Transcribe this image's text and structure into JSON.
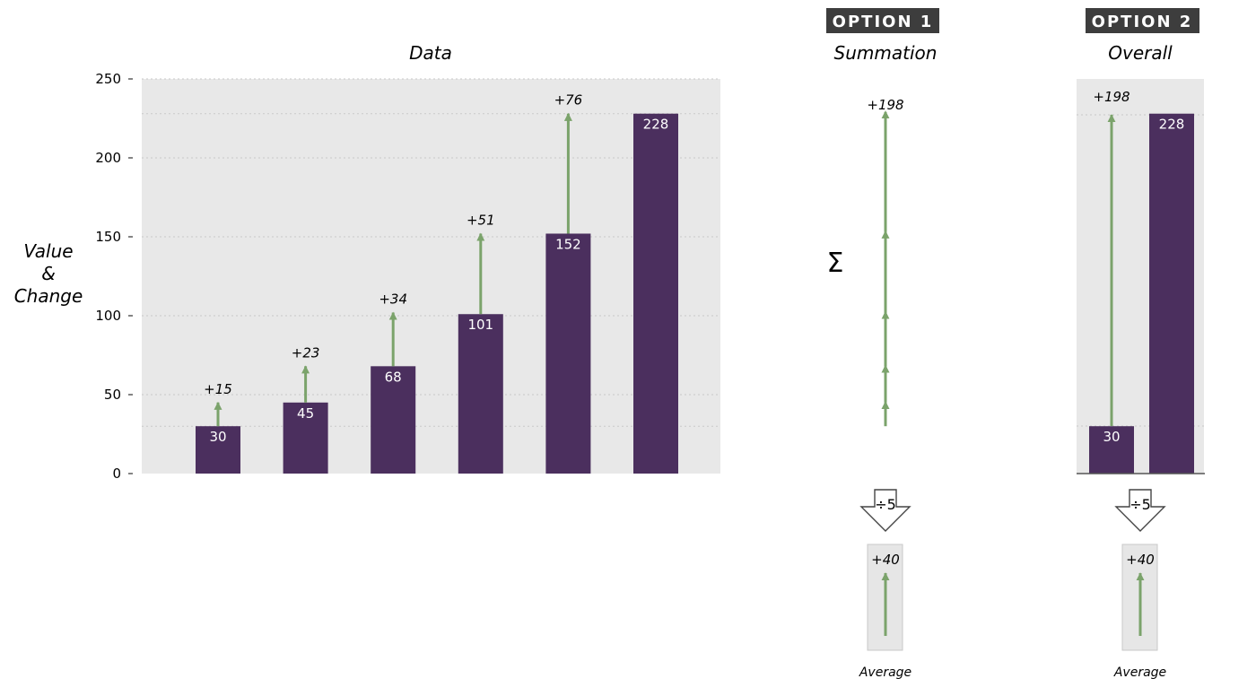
{
  "colors": {
    "bar": "#4b2f5e",
    "arrow": "#7ba36b",
    "panel": "#e8e8e8",
    "grid": "#c9c9c9",
    "badge": "#3d3d3d",
    "badge_text": "#ffffff"
  },
  "chart_data": [
    {
      "type": "bar",
      "title": "Data",
      "ylabel": [
        "Value",
        "&",
        "Change"
      ],
      "ylim": [
        0,
        250
      ],
      "yticks": [
        0,
        50,
        100,
        150,
        200,
        250
      ],
      "grid": true,
      "values": [
        30,
        45,
        68,
        101,
        152,
        228
      ],
      "value_labels": [
        "30",
        "45",
        "68",
        "101",
        "152",
        "228"
      ],
      "changes": [
        15,
        23,
        34,
        51,
        76
      ],
      "change_labels": [
        "+15",
        "+23",
        "+34",
        "+51",
        "+76"
      ]
    },
    {
      "type": "line",
      "badge": "OPTION 1",
      "title": "Summation",
      "symbol": "Σ",
      "segments": [
        15,
        23,
        34,
        51,
        76
      ],
      "from": 30,
      "to": 228,
      "total_label": "+198",
      "divide_label": "÷5",
      "average": 40,
      "average_label": "+40",
      "average_caption": "Average"
    },
    {
      "type": "bar",
      "badge": "OPTION 2",
      "title": "Overall",
      "values": [
        30,
        228
      ],
      "value_labels": [
        "30",
        "228"
      ],
      "total_label": "+198",
      "divide_label": "÷5",
      "average": 40,
      "average_label": "+40",
      "average_caption": "Average"
    }
  ]
}
